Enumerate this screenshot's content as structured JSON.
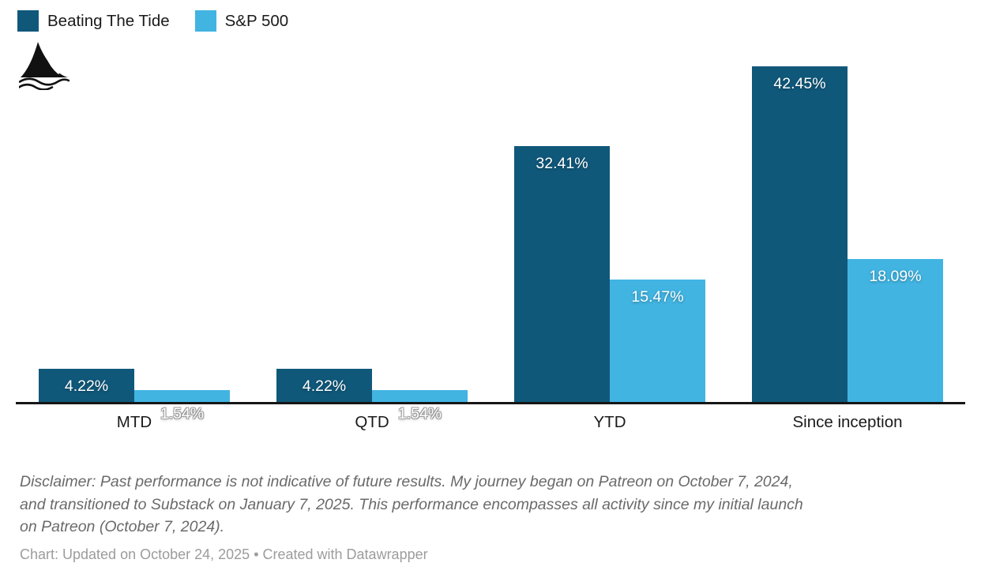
{
  "chart_data": {
    "type": "bar",
    "variant": "grouped-column",
    "categories": [
      "MTD",
      "QTD",
      "YTD",
      "Since inception"
    ],
    "series": [
      {
        "name": "Beating The Tide",
        "color": "#10587a",
        "values": [
          4.22,
          4.22,
          32.41,
          42.45
        ],
        "labels": [
          "4.22%",
          "4.22%",
          "32.41%",
          "42.45%"
        ]
      },
      {
        "name": "S&P 500",
        "color": "#41b4e2",
        "values": [
          1.54,
          1.54,
          15.47,
          18.09
        ],
        "labels": [
          "1.54%",
          "1.54%",
          "15.47%",
          "18.09%"
        ]
      }
    ],
    "title": "",
    "xlabel": "",
    "ylabel": "",
    "ylim": [
      0,
      44
    ],
    "grid": false,
    "legend_position": "top-left",
    "axis_color": "#161616",
    "value_label_color": "#ffffff"
  },
  "logo": {
    "name": "shark-fin"
  },
  "disclaimer": {
    "lines": [
      "Disclaimer: Past performance is not indicative of future results. My journey began on Patreon on October 7, 2024,",
      "and transitioned to Substack on January 7, 2025. This performance encompasses all activity since my initial launch",
      "on Patreon (October 7, 2024)."
    ]
  },
  "footer": {
    "credit": "Chart: Updated on October 24, 2025 • Created with Datawrapper"
  }
}
